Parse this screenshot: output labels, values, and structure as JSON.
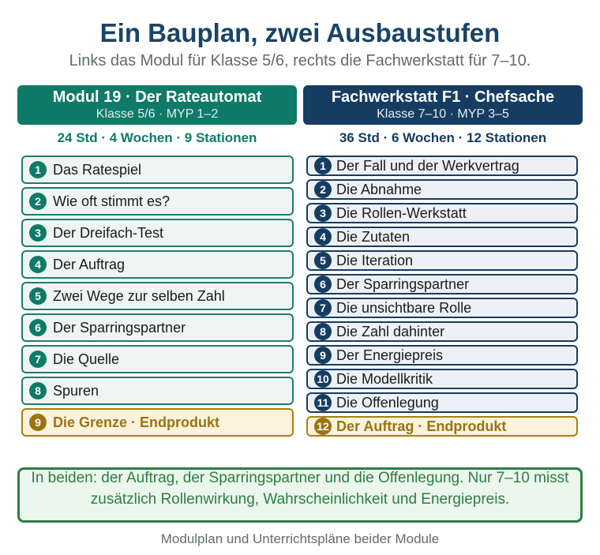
{
  "title": "Ein Bauplan, zwei Ausbaustufen",
  "subtitle": "Links das Modul für Klasse 5/6, rechts die Fachwerkstatt für 7–10.",
  "left": {
    "header_title": "Modul 19 · Der Rateautomat",
    "header_sub": "Klasse 5/6 · MYP 1–2",
    "stats": "24 Std · 4 Wochen · 9 Stationen",
    "items": [
      {
        "num": "1",
        "label": "Das Ratespiel"
      },
      {
        "num": "2",
        "label": "Wie oft stimmt es?"
      },
      {
        "num": "3",
        "label": "Der Dreifach-Test"
      },
      {
        "num": "4",
        "label": "Der Auftrag"
      },
      {
        "num": "5",
        "label": "Zwei Wege zur selben Zahl"
      },
      {
        "num": "6",
        "label": "Der Sparringspartner"
      },
      {
        "num": "7",
        "label": "Die Quelle"
      },
      {
        "num": "8",
        "label": "Spuren"
      },
      {
        "num": "9",
        "label": "Die Grenze · Endprodukt"
      }
    ]
  },
  "right": {
    "header_title": "Fachwerkstatt F1 · Chefsache",
    "header_sub": "Klasse 7–10 · MYP 3–5",
    "stats": "36 Std · 6 Wochen · 12 Stationen",
    "items": [
      {
        "num": "1",
        "label": "Der Fall und der Werkvertrag"
      },
      {
        "num": "2",
        "label": "Die Abnahme"
      },
      {
        "num": "3",
        "label": "Die Rollen-Werkstatt"
      },
      {
        "num": "4",
        "label": "Die Zutaten"
      },
      {
        "num": "5",
        "label": "Die Iteration"
      },
      {
        "num": "6",
        "label": "Der Sparringspartner"
      },
      {
        "num": "7",
        "label": "Die unsichtbare Rolle"
      },
      {
        "num": "8",
        "label": "Die Zahl dahinter"
      },
      {
        "num": "9",
        "label": "Der Energiepreis"
      },
      {
        "num": "10",
        "label": "Die Modellkritik"
      },
      {
        "num": "11",
        "label": "Die Offenlegung"
      },
      {
        "num": "12",
        "label": "Der Auftrag · Endprodukt"
      }
    ]
  },
  "summary": "In beiden: der Auftrag, der Sparringspartner und die Offenlegung. Nur 7–10 misst zusätzlich Rollenwirkung, Wahrscheinlichkeit und Energiepreis.",
  "caption": "Modulplan und Unterrichtspläne beider Module",
  "colors": {
    "title": "#1a4467",
    "left_accent": "#0f7a67",
    "right_accent": "#163c62",
    "final_accent": "#9a7412",
    "summary_accent": "#2e7d44"
  }
}
